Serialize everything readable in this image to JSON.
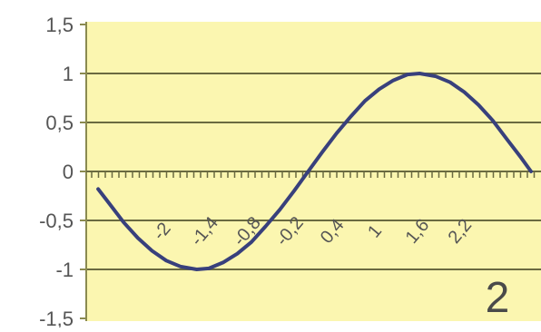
{
  "chart_data": {
    "type": "line",
    "title": "",
    "xlabel": "",
    "ylabel": "",
    "xlim": [
      -3.0,
      3.14
    ],
    "ylim": [
      -1.5,
      1.5
    ],
    "y_ticks": [
      1.5,
      1,
      0.5,
      0,
      -0.5,
      -1,
      -1.5
    ],
    "y_tick_labels": [
      "1,5",
      "1",
      "0,5",
      "0",
      "-0,5",
      "-1",
      "-1,5"
    ],
    "x_ticks": [
      -2,
      -1.4,
      -0.8,
      -0.2,
      0.4,
      1,
      1.6,
      2.2
    ],
    "x_tick_labels": [
      "-2",
      "-1,4",
      "-0,8",
      "-0,2",
      "0,4",
      "1",
      "1,6",
      "2,2"
    ],
    "grid": "horizontal",
    "annotation": "2",
    "colors": {
      "plot_background": "#fbf6b0",
      "gridline": "#6a6a40",
      "line": "#38407c",
      "axis": "#8a8a50",
      "text": "#555555"
    },
    "series": [
      {
        "name": "",
        "x": [
          -2.96,
          -2.8,
          -2.6,
          -2.4,
          -2.2,
          -2.0,
          -1.8,
          -1.571,
          -1.4,
          -1.2,
          -1.0,
          -0.8,
          -0.6,
          -0.4,
          -0.2,
          0.0,
          0.2,
          0.4,
          0.6,
          0.8,
          1.0,
          1.2,
          1.4,
          1.571,
          1.8,
          2.0,
          2.2,
          2.4,
          2.6,
          2.8,
          3.0,
          3.14
        ],
        "y": [
          -0.18,
          -0.33,
          -0.52,
          -0.68,
          -0.81,
          -0.91,
          -0.97,
          -1.0,
          -0.99,
          -0.93,
          -0.84,
          -0.72,
          -0.56,
          -0.39,
          -0.2,
          0.0,
          0.2,
          0.39,
          0.56,
          0.72,
          0.84,
          0.93,
          0.99,
          1.0,
          0.97,
          0.91,
          0.81,
          0.68,
          0.52,
          0.33,
          0.14,
          0.0
        ]
      }
    ]
  }
}
